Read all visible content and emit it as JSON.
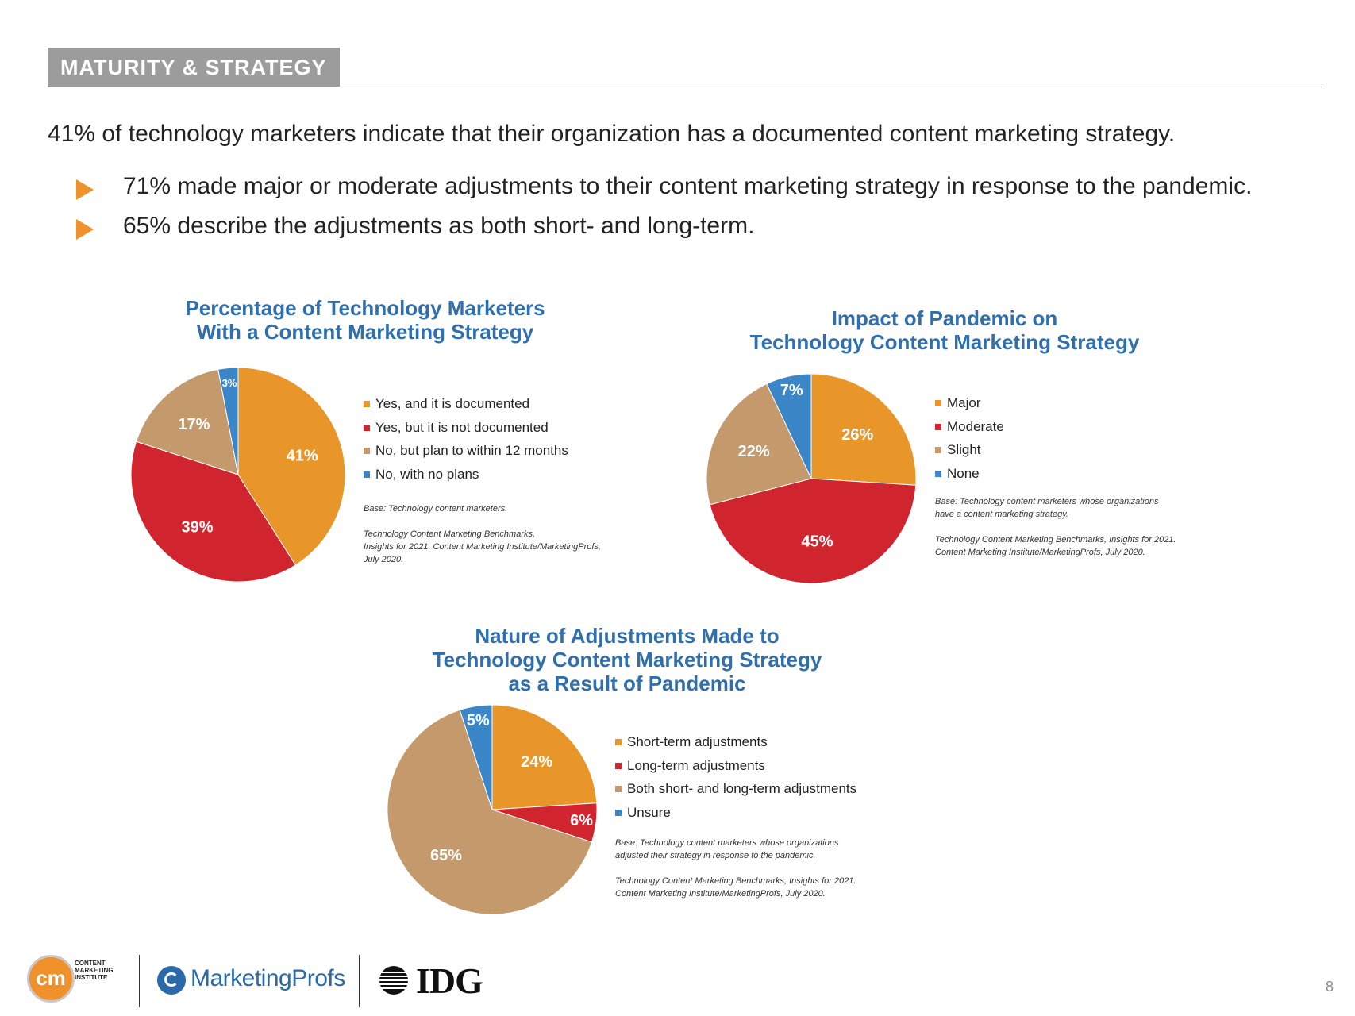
{
  "section_tag": "MATURITY & STRATEGY",
  "headline": "41% of technology marketers indicate that their organization has a documented content marketing strategy.",
  "bullets": [
    "71% made major or moderate adjustments to their content marketing strategy in response to the pandemic.",
    "65% describe the adjustments as both short- and long-term."
  ],
  "colors": {
    "orange": "#e8952a",
    "red": "#d0252e",
    "tan": "#c49a6c",
    "blue": "#3a86c6",
    "title_blue": "#2f6fae",
    "bullet": "#f0922b",
    "tag_bg": "#9c9c9c"
  },
  "chart_data": [
    {
      "type": "pie",
      "title_lines": [
        "Percentage of Technology Marketers",
        "With a Content Marketing Strategy"
      ],
      "categories": [
        "Yes, and it is documented",
        "Yes, but it is not documented",
        "No, but plan to within 12 months",
        "No, with no plans"
      ],
      "values": [
        41,
        39,
        17,
        3
      ],
      "value_labels": [
        "41%",
        "39%",
        "17%",
        "3%"
      ],
      "legend_position": "right",
      "note_lines": [
        "Base: Technology content marketers.",
        "",
        "Technology Content Marketing Benchmarks,",
        " Insights for 2021. Content Marketing Institute/MarketingProfs,",
        " July 2020."
      ]
    },
    {
      "type": "pie",
      "title_lines": [
        "Impact of Pandemic on",
        "Technology Content Marketing Strategy"
      ],
      "categories": [
        "Major",
        "Moderate",
        "Slight",
        "None"
      ],
      "values": [
        26,
        45,
        22,
        7
      ],
      "value_labels": [
        "26%",
        "45%",
        "22%",
        "7%"
      ],
      "legend_position": "right",
      "note_lines": [
        "Base: Technology content marketers whose organizations",
        "have a content marketing strategy.",
        "",
        "Technology Content Marketing Benchmarks, Insights for 2021.",
        "Content Marketing Institute/MarketingProfs, July 2020."
      ]
    },
    {
      "type": "pie",
      "title_lines": [
        "Nature of Adjustments Made to",
        "Technology Content Marketing Strategy",
        "as a Result of Pandemic"
      ],
      "categories": [
        "Short-term adjustments",
        "Long-term adjustments",
        "Both short- and long-term adjustments",
        "Unsure"
      ],
      "values": [
        24,
        6,
        65,
        5
      ],
      "value_labels": [
        "24%",
        "6%",
        "65%",
        "5%"
      ],
      "legend_position": "right",
      "note_lines": [
        "Base: Technology content marketers whose organizations",
        "adjusted their strategy in response to the pandemic.",
        "",
        "Technology Content Marketing Benchmarks, Insights for 2021.",
        "Content Marketing Institute/MarketingProfs, July 2020."
      ]
    }
  ],
  "footer": {
    "cmi_mark": "cm",
    "cmi_text": "CONTENT\nMARKETING\nINSTITUTE",
    "marketingprofs": "MarketingProfs",
    "idg": "IDG",
    "page_number": "8"
  }
}
